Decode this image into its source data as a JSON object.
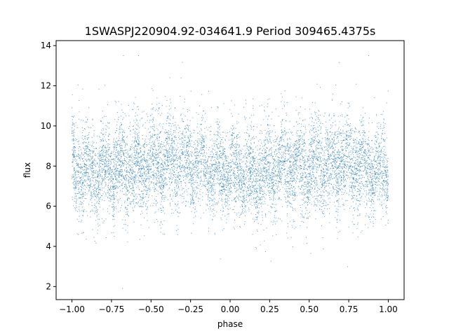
{
  "chart_data": {
    "type": "scatter",
    "title": "1SWASPJ220904.92-034641.9 Period 309465.4375s",
    "xlabel": "phase",
    "ylabel": "flux",
    "xlim": [
      -1.1,
      1.1
    ],
    "ylim": [
      1.35,
      14.25
    ],
    "grid": false,
    "point_color": "#1f77b4",
    "x_ticks": [
      -1.0,
      -0.75,
      -0.5,
      -0.25,
      0.0,
      0.25,
      0.5,
      0.75,
      1.0
    ],
    "x_tick_labels": [
      "−1.00",
      "−0.75",
      "−0.50",
      "−0.25",
      "0.00",
      "0.25",
      "0.50",
      "0.75",
      "1.00"
    ],
    "y_ticks": [
      2,
      4,
      6,
      8,
      10,
      12,
      14
    ],
    "y_tick_labels": [
      "2",
      "4",
      "6",
      "8",
      "10",
      "12",
      "14"
    ],
    "phase_range": [
      -1.0,
      1.0
    ],
    "baseline_flux": 7.7,
    "flux_profile": [
      {
        "phase": -1.0,
        "mean": 7.9,
        "spread": 1.25
      },
      {
        "phase": -0.85,
        "mean": 7.7,
        "spread": 1.35
      },
      {
        "phase": -0.65,
        "mean": 8.0,
        "spread": 1.3
      },
      {
        "phase": -0.5,
        "mean": 8.0,
        "spread": 1.4
      },
      {
        "phase": -0.3,
        "mean": 8.3,
        "spread": 1.3
      },
      {
        "phase": -0.1,
        "mean": 7.8,
        "spread": 1.2
      },
      {
        "phase": 0.0,
        "mean": 7.8,
        "spread": 1.25
      },
      {
        "phase": 0.15,
        "mean": 7.6,
        "spread": 1.35
      },
      {
        "phase": 0.35,
        "mean": 8.0,
        "spread": 1.3
      },
      {
        "phase": 0.5,
        "mean": 8.0,
        "spread": 1.4
      },
      {
        "phase": 0.7,
        "mean": 8.3,
        "spread": 1.3
      },
      {
        "phase": 0.9,
        "mean": 7.8,
        "spread": 1.2
      },
      {
        "phase": 1.0,
        "mean": 7.8,
        "spread": 1.25
      }
    ]
  }
}
